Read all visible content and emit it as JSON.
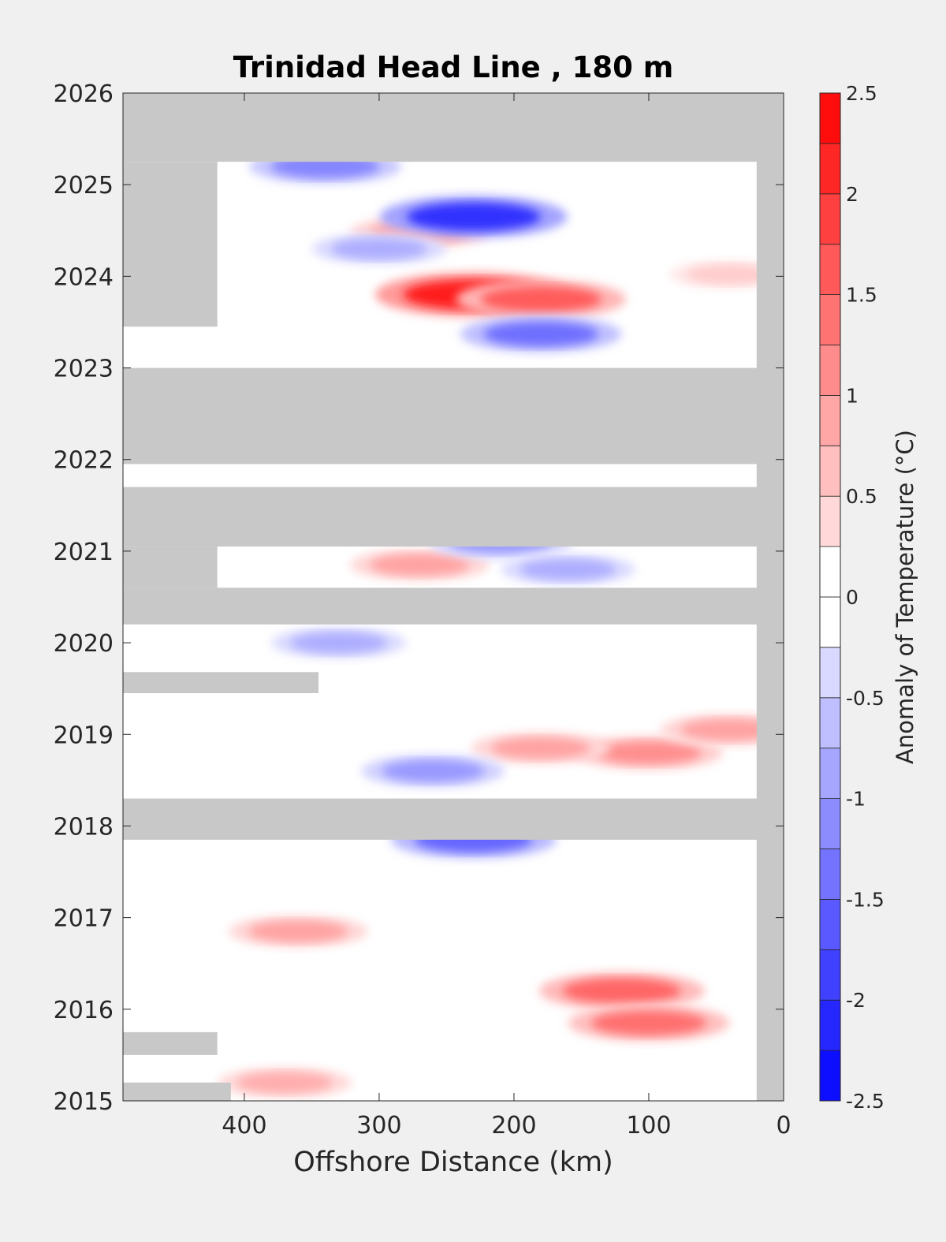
{
  "chart_data": {
    "type": "heatmap",
    "title": "Trinidad Head Line , 180 m",
    "xlabel": "Offshore Distance (km)",
    "ylabel": "",
    "x_direction": "reversed",
    "xlim": [
      490,
      0
    ],
    "ylim": [
      2015,
      2026
    ],
    "x_ticks": [
      400,
      300,
      200,
      100,
      0
    ],
    "y_ticks": [
      2015,
      2016,
      2017,
      2018,
      2019,
      2020,
      2021,
      2022,
      2023,
      2024,
      2025,
      2026
    ],
    "colorbar": {
      "label": "Anomaly of Temperature (°C)",
      "range": [
        -2.5,
        2.5
      ],
      "step": 0.25,
      "ticks": [
        -2.5,
        -2,
        -1.5,
        -1,
        -0.5,
        0,
        0.5,
        1,
        1.5,
        2,
        2.5
      ],
      "tick_labels": [
        "-2.5",
        "-2",
        "-1.5",
        "-1",
        "-0.5",
        "0",
        "0.5",
        "1",
        "1.5",
        "2",
        "2.5"
      ],
      "colormap": "blue-white-red"
    },
    "no_data_color": "#c8c8c8",
    "no_data_regions": [
      {
        "x": [
          490,
          0
        ],
        "y": [
          2025.25,
          2026
        ]
      },
      {
        "x": [
          20,
          0
        ],
        "y": [
          2015,
          2026
        ]
      },
      {
        "x": [
          490,
          420
        ],
        "y": [
          2023.45,
          2025.25
        ]
      },
      {
        "x": [
          490,
          0
        ],
        "y": [
          2023,
          2021.95
        ]
      },
      {
        "x": [
          490,
          0
        ],
        "y": [
          2021.05,
          2021.7
        ]
      },
      {
        "x": [
          490,
          0
        ],
        "y": [
          2020.2,
          2020.6
        ]
      },
      {
        "x": [
          490,
          420
        ],
        "y": [
          2020.6,
          2021.05
        ]
      },
      {
        "x": [
          490,
          0
        ],
        "y": [
          2017.85,
          2018.3
        ]
      },
      {
        "x": [
          490,
          345
        ],
        "y": [
          2019.45,
          2019.68
        ]
      },
      {
        "x": [
          490,
          420
        ],
        "y": [
          2015.5,
          2015.75
        ]
      },
      {
        "x": [
          490,
          410
        ],
        "y": [
          2015,
          2015.2
        ]
      }
    ],
    "anomalies": [
      {
        "x": 230,
        "y": 2023.8,
        "value": 2.2
      },
      {
        "x": 180,
        "y": 2023.75,
        "value": 1.6
      },
      {
        "x": 270,
        "y": 2024.48,
        "value": 0.9
      },
      {
        "x": 120,
        "y": 2016.2,
        "value": 1.5
      },
      {
        "x": 100,
        "y": 2015.85,
        "value": 1.4
      },
      {
        "x": 100,
        "y": 2018.8,
        "value": 1.1
      },
      {
        "x": 180,
        "y": 2018.85,
        "value": 0.9
      },
      {
        "x": 40,
        "y": 2019.05,
        "value": 0.9
      },
      {
        "x": 360,
        "y": 2016.85,
        "value": 0.9
      },
      {
        "x": 270,
        "y": 2020.85,
        "value": 0.9
      },
      {
        "x": 40,
        "y": 2024.02,
        "value": 0.5
      },
      {
        "x": 370,
        "y": 2015.2,
        "value": 0.8
      },
      {
        "x": 230,
        "y": 2024.65,
        "value": -2.0
      },
      {
        "x": 180,
        "y": 2023.37,
        "value": -1.4
      },
      {
        "x": 340,
        "y": 2025.2,
        "value": -1.2
      },
      {
        "x": 300,
        "y": 2024.3,
        "value": -0.8
      },
      {
        "x": 210,
        "y": 2021.1,
        "value": -1.0
      },
      {
        "x": 230,
        "y": 2017.85,
        "value": -1.5
      },
      {
        "x": 260,
        "y": 2018.6,
        "value": -1.0
      },
      {
        "x": 330,
        "y": 2020.0,
        "value": -0.8
      },
      {
        "x": 160,
        "y": 2020.8,
        "value": -0.8
      }
    ]
  }
}
